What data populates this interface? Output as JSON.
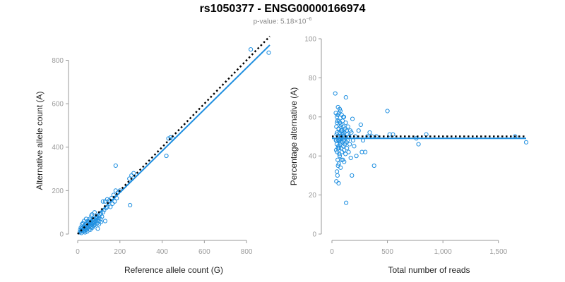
{
  "title": "rs1050377 - ENSG00000166974",
  "subtitle": {
    "prefix": "p-value: 5.18×10",
    "exponent": "−6"
  },
  "colors": {
    "points": "#1f8fe0",
    "fit_line": "#1f8fe0",
    "reference_line": "#000000",
    "axis": "#9a9a9a"
  },
  "chart_data": [
    {
      "type": "scatter",
      "xlabel": "Reference allele count (G)",
      "ylabel": "Alternative allele count (A)",
      "xlim": [
        0,
        910
      ],
      "ylim": [
        0,
        860
      ],
      "xticks": [
        0,
        200,
        400,
        600,
        800
      ],
      "yticks": [
        0,
        200,
        400,
        600,
        800
      ],
      "xtick_labels": [
        "0",
        "200",
        "400",
        "600",
        "800"
      ],
      "ytick_labels": [
        "0",
        "200",
        "400",
        "600",
        "800"
      ],
      "grid": false,
      "series": [
        {
          "points": [
            [
              10,
              8
            ],
            [
              12,
              20
            ],
            [
              15,
              14
            ],
            [
              18,
              25
            ],
            [
              20,
              18
            ],
            [
              22,
              30
            ],
            [
              25,
              12
            ],
            [
              26,
              22
            ],
            [
              28,
              35
            ],
            [
              30,
              28
            ],
            [
              32,
              15
            ],
            [
              34,
              40
            ],
            [
              35,
              25
            ],
            [
              38,
              45
            ],
            [
              40,
              32
            ],
            [
              42,
              20
            ],
            [
              44,
              50
            ],
            [
              45,
              38
            ],
            [
              48,
              28
            ],
            [
              50,
              42
            ],
            [
              52,
              55
            ],
            [
              55,
              35
            ],
            [
              56,
              48
            ],
            [
              58,
              62
            ],
            [
              60,
              40
            ],
            [
              62,
              52
            ],
            [
              64,
              30
            ],
            [
              66,
              58
            ],
            [
              68,
              45
            ],
            [
              70,
              65
            ],
            [
              72,
              50
            ],
            [
              74,
              38
            ],
            [
              76,
              60
            ],
            [
              78,
              70
            ],
            [
              80,
              55
            ],
            [
              82,
              45
            ],
            [
              85,
              72
            ],
            [
              88,
              60
            ],
            [
              90,
              80
            ],
            [
              92,
              50
            ],
            [
              95,
              68
            ],
            [
              98,
              85
            ],
            [
              100,
              75
            ],
            [
              102,
              60
            ],
            [
              105,
              90
            ],
            [
              108,
              70
            ],
            [
              110,
              95
            ],
            [
              115,
              80
            ],
            [
              120,
              100
            ],
            [
              125,
              110
            ],
            [
              130,
              150
            ],
            [
              135,
              120
            ],
            [
              140,
              125
            ],
            [
              150,
              155
            ],
            [
              155,
              125
            ],
            [
              160,
              165
            ],
            [
              165,
              140
            ],
            [
              170,
              180
            ],
            [
              175,
              150
            ],
            [
              180,
              200
            ],
            [
              185,
              165
            ],
            [
              190,
              190
            ],
            [
              200,
              200
            ],
            [
              20,
              45
            ],
            [
              30,
              60
            ],
            [
              40,
              70
            ],
            [
              15,
              30
            ],
            [
              25,
              50
            ],
            [
              60,
              20
            ],
            [
              70,
              30
            ],
            [
              100,
              45
            ],
            [
              110,
              55
            ],
            [
              95,
              25
            ],
            [
              130,
              60
            ],
            [
              180,
              315
            ],
            [
              248,
              133
            ],
            [
              245,
              255
            ],
            [
              255,
              270
            ],
            [
              265,
              280
            ],
            [
              420,
              360
            ],
            [
              430,
              440
            ],
            [
              440,
              445
            ],
            [
              450,
              440
            ],
            [
              820,
              850
            ],
            [
              905,
              835
            ],
            [
              80,
              100
            ],
            [
              45,
              12
            ],
            [
              55,
              22
            ],
            [
              35,
              8
            ],
            [
              65,
              85
            ],
            [
              18,
              5
            ],
            [
              28,
              18
            ],
            [
              38,
              22
            ],
            [
              48,
              60
            ],
            [
              58,
              70
            ],
            [
              68,
              90
            ],
            [
              78,
              40
            ],
            [
              88,
              75
            ],
            [
              120,
              150
            ],
            [
              140,
              160
            ]
          ]
        }
      ],
      "lines": [
        {
          "name": "",
          "style": "solid",
          "points": [
            [
              0,
              0
            ],
            [
              910,
              870
            ]
          ]
        },
        {
          "name": "",
          "style": "dotted",
          "points": [
            [
              0,
              0
            ],
            [
              910,
              910
            ]
          ]
        }
      ]
    },
    {
      "type": "scatter",
      "xlabel": "Total number of reads",
      "ylabel": "Percentage alternative (A)",
      "xlim": [
        0,
        1750
      ],
      "ylim": [
        0,
        100
      ],
      "xticks": [
        0,
        500,
        1000,
        1500
      ],
      "yticks": [
        0,
        20,
        40,
        60,
        80,
        100
      ],
      "xtick_labels": [
        "0",
        "500",
        "1,000",
        "1,500"
      ],
      "ytick_labels": [
        "0",
        "20",
        "40",
        "60",
        "80",
        "100"
      ],
      "grid": false,
      "series": [
        {
          "points": [
            [
              30,
              72
            ],
            [
              35,
              62
            ],
            [
              40,
              55
            ],
            [
              42,
              48
            ],
            [
              45,
              60
            ],
            [
              48,
              42
            ],
            [
              50,
              58
            ],
            [
              52,
              38
            ],
            [
              55,
              65
            ],
            [
              56,
              50
            ],
            [
              58,
              45
            ],
            [
              60,
              54
            ],
            [
              62,
              36
            ],
            [
              64,
              62
            ],
            [
              66,
              48
            ],
            [
              68,
              52
            ],
            [
              70,
              40
            ],
            [
              72,
              57
            ],
            [
              74,
              46
            ],
            [
              76,
              63
            ],
            [
              78,
              34
            ],
            [
              80,
              50
            ],
            [
              82,
              44
            ],
            [
              84,
              56
            ],
            [
              86,
              49
            ],
            [
              88,
              61
            ],
            [
              90,
              42
            ],
            [
              92,
              53
            ],
            [
              94,
              47
            ],
            [
              96,
              58
            ],
            [
              98,
              38
            ],
            [
              100,
              51
            ],
            [
              102,
              45
            ],
            [
              104,
              55
            ],
            [
              106,
              48
            ],
            [
              108,
              60
            ],
            [
              110,
              43
            ],
            [
              112,
              52
            ],
            [
              114,
              50
            ],
            [
              116,
              46
            ],
            [
              118,
              54
            ],
            [
              120,
              49
            ],
            [
              122,
              41
            ],
            [
              124,
              57
            ],
            [
              126,
              70
            ],
            [
              128,
              16
            ],
            [
              130,
              47
            ],
            [
              132,
              53
            ],
            [
              135,
              44
            ],
            [
              138,
              51
            ],
            [
              140,
              48
            ],
            [
              145,
              55
            ],
            [
              150,
              42
            ],
            [
              155,
              50
            ],
            [
              160,
              46
            ],
            [
              165,
              53
            ],
            [
              170,
              39
            ],
            [
              175,
              52
            ],
            [
              180,
              30
            ],
            [
              185,
              59
            ],
            [
              190,
              48
            ],
            [
              40,
              27
            ],
            [
              45,
              32
            ],
            [
              50,
              30
            ],
            [
              55,
              35
            ],
            [
              60,
              26
            ],
            [
              38,
              43
            ],
            [
              42,
              51
            ],
            [
              46,
              57
            ],
            [
              52,
              61
            ],
            [
              58,
              48
            ],
            [
              64,
              44
            ],
            [
              70,
              64
            ],
            [
              76,
              47
            ],
            [
              82,
              53
            ],
            [
              200,
              45
            ],
            [
              210,
              50
            ],
            [
              220,
              40
            ],
            [
              240,
              53
            ],
            [
              260,
              56
            ],
            [
              270,
              42
            ],
            [
              280,
              48
            ],
            [
              300,
              42
            ],
            [
              320,
              50
            ],
            [
              340,
              52
            ],
            [
              360,
              50
            ],
            [
              380,
              35
            ],
            [
              400,
              50
            ],
            [
              500,
              63
            ],
            [
              520,
              51
            ],
            [
              550,
              51
            ],
            [
              760,
              49
            ],
            [
              780,
              46
            ],
            [
              850,
              51
            ],
            [
              1650,
              50
            ],
            [
              1750,
              47
            ],
            [
              36,
              48
            ],
            [
              44,
              46
            ],
            [
              48,
              52
            ],
            [
              54,
              44
            ],
            [
              62,
              58
            ],
            [
              66,
              41
            ],
            [
              72,
              49
            ],
            [
              78,
              55
            ],
            [
              86,
              38
            ],
            [
              94,
              52
            ],
            [
              102,
              60
            ],
            [
              110,
              37
            ]
          ]
        }
      ],
      "lines": [
        {
          "name": "",
          "style": "solid",
          "points": [
            [
              0,
              49
            ],
            [
              1750,
              49
            ]
          ]
        },
        {
          "name": "",
          "style": "dotted",
          "points": [
            [
              0,
              50
            ],
            [
              1750,
              50
            ]
          ]
        }
      ]
    }
  ]
}
